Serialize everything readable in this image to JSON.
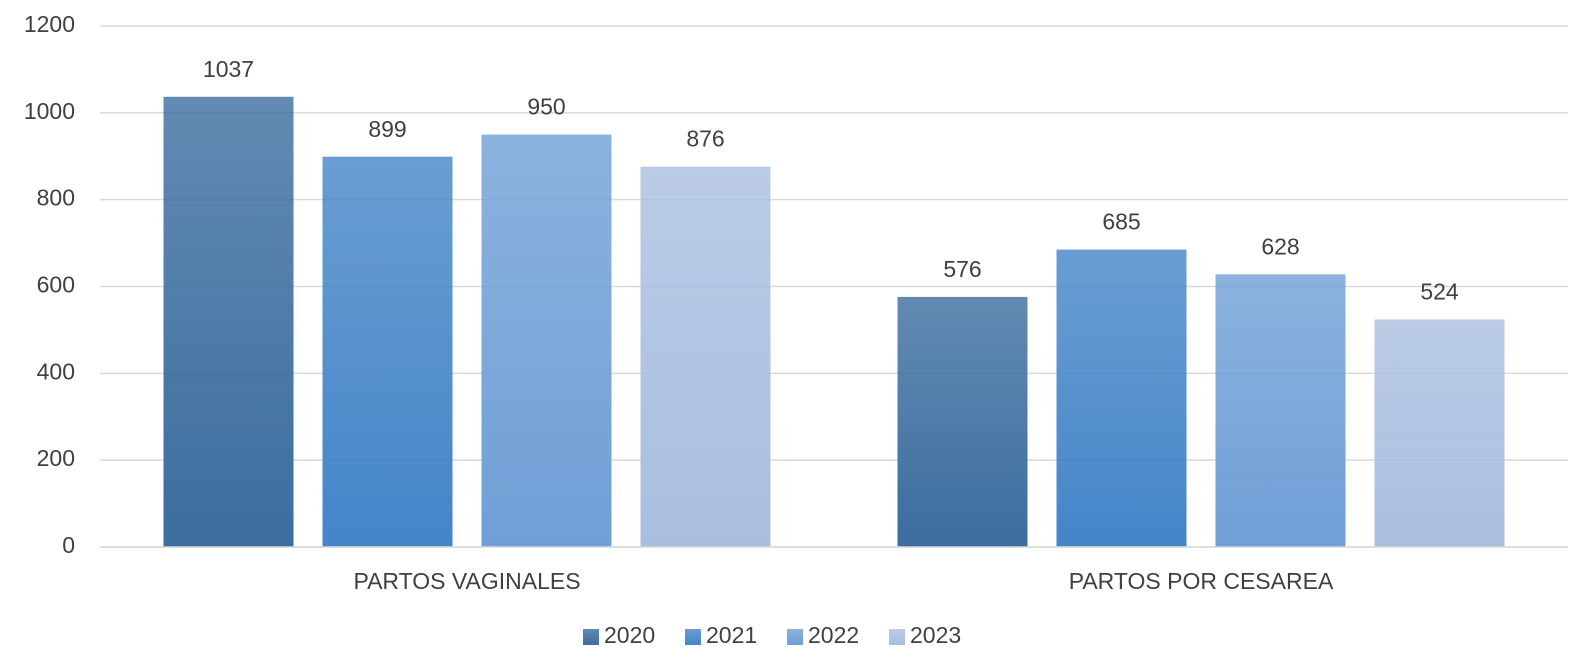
{
  "chart_data": {
    "type": "bar",
    "categories": [
      "PARTOS VAGINALES",
      "PARTOS POR CESAREA"
    ],
    "series": [
      {
        "name": "2020",
        "color": "#3b6d9f",
        "values": [
          1037,
          576
        ]
      },
      {
        "name": "2021",
        "color": "#4485c8",
        "values": [
          899,
          685
        ]
      },
      {
        "name": "2022",
        "color": "#6f9fd6",
        "values": [
          950,
          628
        ]
      },
      {
        "name": "2023",
        "color": "#a9bedf",
        "values": [
          876,
          524
        ]
      }
    ],
    "ylim": [
      0,
      1200
    ],
    "yticks": [
      0,
      200,
      400,
      600,
      800,
      1000,
      1200
    ],
    "grid": true,
    "legend": "bottom"
  }
}
